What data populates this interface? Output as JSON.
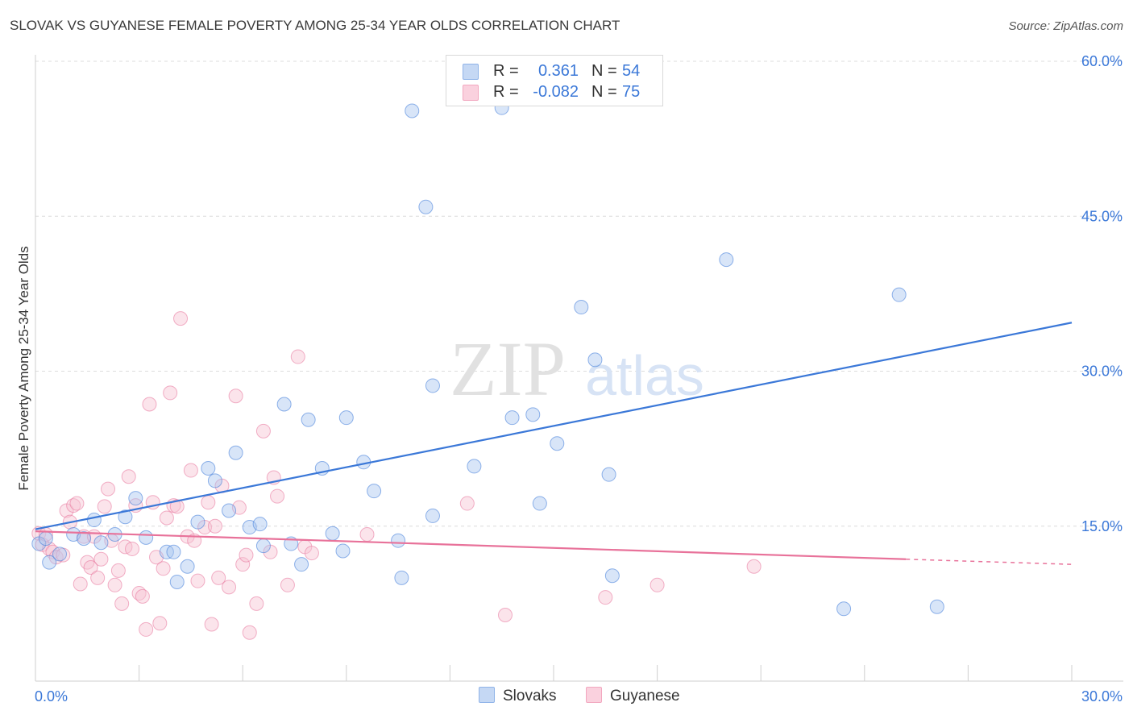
{
  "title": "SLOVAK VS GUYANESE FEMALE POVERTY AMONG 25-34 YEAR OLDS CORRELATION CHART",
  "source": "Source: ZipAtlas.com",
  "watermark": {
    "zip": "ZIP",
    "atlas": "atlas"
  },
  "legend_stats": [
    {
      "r_label": "R =",
      "r_value": "0.361",
      "n_label": "N =",
      "n_value": "54",
      "color": "#8fb3e8"
    },
    {
      "r_label": "R =",
      "r_value": "-0.082",
      "n_label": "N =",
      "n_value": "75",
      "color": "#f2a7bf"
    }
  ],
  "legend_series": [
    "Slovaks",
    "Guyanese"
  ],
  "chart_data": {
    "type": "scatter",
    "title": "SLOVAK VS GUYANESE FEMALE POVERTY AMONG 25-34 YEAR OLDS CORRELATION CHART",
    "xlabel": "",
    "ylabel": "Female Poverty Among 25-34 Year Olds",
    "xlim": [
      0,
      30
    ],
    "ylim": [
      0,
      60
    ],
    "x_tick_labels": [
      "0.0%",
      "30.0%"
    ],
    "y_tick_labels": [
      "15.0%",
      "30.0%",
      "45.0%",
      "60.0%"
    ],
    "y_ticks": [
      15,
      30,
      45,
      60
    ],
    "x_minor_ticks": [
      3,
      6,
      9,
      12,
      15,
      18,
      21,
      24,
      27,
      30
    ],
    "grid": "horizontal dashed",
    "legend_position": "top-center and bottom",
    "series": [
      {
        "name": "Slovaks",
        "color": "#3b78d8",
        "fill": "#a9c6f0",
        "trend": {
          "x": [
            0,
            30
          ],
          "y": [
            14.7,
            34.7
          ],
          "style": "solid"
        },
        "points": [
          [
            0.1,
            13.3
          ],
          [
            0.3,
            13.8
          ],
          [
            0.4,
            11.5
          ],
          [
            0.7,
            12.3
          ],
          [
            1.1,
            14.2
          ],
          [
            1.4,
            13.8
          ],
          [
            1.7,
            15.6
          ],
          [
            1.9,
            13.4
          ],
          [
            2.3,
            14.2
          ],
          [
            2.6,
            15.9
          ],
          [
            2.9,
            17.7
          ],
          [
            3.2,
            13.9
          ],
          [
            3.8,
            12.5
          ],
          [
            4.0,
            12.5
          ],
          [
            4.1,
            9.6
          ],
          [
            4.4,
            11.1
          ],
          [
            4.7,
            15.4
          ],
          [
            5.0,
            20.6
          ],
          [
            5.2,
            19.4
          ],
          [
            5.6,
            16.5
          ],
          [
            5.8,
            22.1
          ],
          [
            6.2,
            14.9
          ],
          [
            6.5,
            15.2
          ],
          [
            6.6,
            13.1
          ],
          [
            7.2,
            26.8
          ],
          [
            7.4,
            13.3
          ],
          [
            7.7,
            11.3
          ],
          [
            7.9,
            25.3
          ],
          [
            8.3,
            20.6
          ],
          [
            8.6,
            14.3
          ],
          [
            8.9,
            12.6
          ],
          [
            9.0,
            25.5
          ],
          [
            9.5,
            21.2
          ],
          [
            9.8,
            18.4
          ],
          [
            10.5,
            13.6
          ],
          [
            10.6,
            10.0
          ],
          [
            10.9,
            55.2
          ],
          [
            11.3,
            45.9
          ],
          [
            11.5,
            16.0
          ],
          [
            11.5,
            28.6
          ],
          [
            12.7,
            20.8
          ],
          [
            13.5,
            55.5
          ],
          [
            13.8,
            25.5
          ],
          [
            13.9,
            59.3
          ],
          [
            14.4,
            25.8
          ],
          [
            14.6,
            17.2
          ],
          [
            15.1,
            23.0
          ],
          [
            15.8,
            36.2
          ],
          [
            16.2,
            31.1
          ],
          [
            16.6,
            20.0
          ],
          [
            16.7,
            10.2
          ],
          [
            20.0,
            40.8
          ],
          [
            23.4,
            7.0
          ],
          [
            25.0,
            37.4
          ],
          [
            26.1,
            7.2
          ]
        ]
      },
      {
        "name": "Guyanese",
        "color": "#e8729a",
        "fill": "#f6c3d3",
        "trend": {
          "x": [
            0,
            25.2
          ],
          "y": [
            14.5,
            11.8
          ],
          "style": "solid",
          "dashed_to": [
            30,
            11.3
          ]
        },
        "points": [
          [
            0.1,
            14.3
          ],
          [
            0.2,
            13.2
          ],
          [
            0.3,
            14.2
          ],
          [
            0.4,
            12.8
          ],
          [
            0.5,
            12.5
          ],
          [
            0.6,
            12.0
          ],
          [
            0.8,
            12.2
          ],
          [
            0.9,
            16.5
          ],
          [
            1.0,
            15.4
          ],
          [
            1.1,
            17.0
          ],
          [
            1.2,
            17.2
          ],
          [
            1.3,
            9.4
          ],
          [
            1.4,
            14.0
          ],
          [
            1.5,
            11.5
          ],
          [
            1.6,
            11.0
          ],
          [
            1.7,
            14.0
          ],
          [
            1.8,
            10.0
          ],
          [
            1.9,
            11.8
          ],
          [
            2.0,
            16.9
          ],
          [
            2.1,
            18.6
          ],
          [
            2.2,
            13.6
          ],
          [
            2.3,
            9.3
          ],
          [
            2.4,
            10.7
          ],
          [
            2.5,
            7.5
          ],
          [
            2.6,
            13.0
          ],
          [
            2.7,
            19.8
          ],
          [
            2.8,
            12.8
          ],
          [
            2.9,
            17.0
          ],
          [
            3.0,
            8.5
          ],
          [
            3.1,
            8.2
          ],
          [
            3.2,
            5.0
          ],
          [
            3.3,
            26.8
          ],
          [
            3.4,
            17.3
          ],
          [
            3.5,
            12.0
          ],
          [
            3.6,
            5.6
          ],
          [
            3.7,
            10.9
          ],
          [
            3.8,
            15.8
          ],
          [
            3.9,
            27.9
          ],
          [
            4.0,
            17.0
          ],
          [
            4.1,
            16.9
          ],
          [
            4.2,
            35.1
          ],
          [
            4.4,
            14.0
          ],
          [
            4.5,
            20.4
          ],
          [
            4.6,
            13.6
          ],
          [
            4.7,
            9.7
          ],
          [
            4.9,
            14.9
          ],
          [
            5.0,
            17.3
          ],
          [
            5.1,
            5.5
          ],
          [
            5.2,
            15.0
          ],
          [
            5.3,
            10.0
          ],
          [
            5.4,
            18.9
          ],
          [
            5.6,
            9.1
          ],
          [
            5.8,
            27.6
          ],
          [
            5.9,
            16.8
          ],
          [
            6.0,
            11.3
          ],
          [
            6.1,
            12.2
          ],
          [
            6.2,
            4.7
          ],
          [
            6.4,
            7.5
          ],
          [
            6.6,
            24.2
          ],
          [
            6.8,
            12.5
          ],
          [
            6.9,
            19.7
          ],
          [
            7.0,
            17.9
          ],
          [
            7.3,
            9.3
          ],
          [
            7.6,
            31.4
          ],
          [
            7.8,
            13.0
          ],
          [
            8.0,
            12.4
          ],
          [
            9.6,
            14.2
          ],
          [
            12.5,
            17.2
          ],
          [
            13.6,
            6.4
          ],
          [
            16.5,
            8.1
          ],
          [
            18.0,
            9.3
          ],
          [
            20.8,
            11.1
          ]
        ]
      }
    ]
  }
}
